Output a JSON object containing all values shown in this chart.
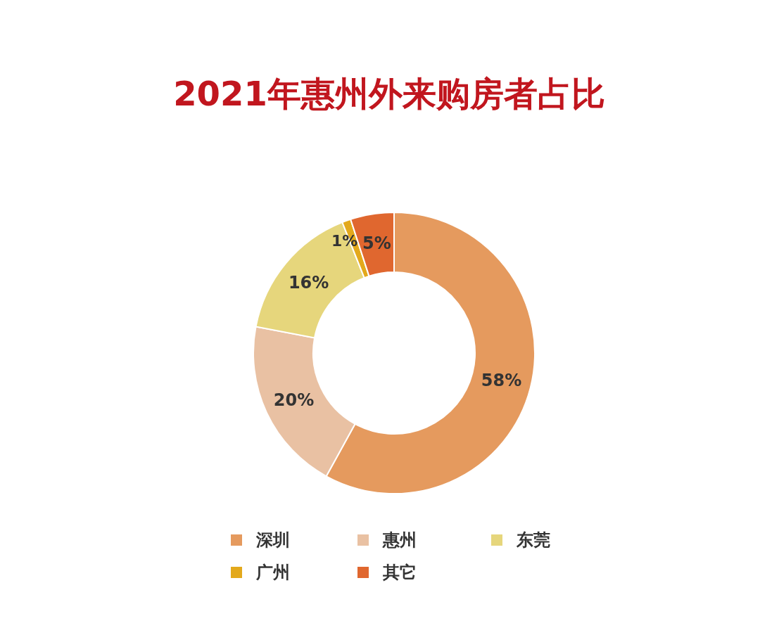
{
  "chart_data": {
    "type": "donut",
    "title": "2021年惠州外来购房者占比",
    "categories": [
      "深圳",
      "惠州",
      "东莞",
      "广州",
      "其它"
    ],
    "values": [
      58,
      20,
      16,
      1,
      5
    ],
    "colors": [
      "#e59a5e",
      "#e9c1a3",
      "#e6d67c",
      "#e3a91c",
      "#e0672f"
    ],
    "value_labels": [
      "58%",
      "20%",
      "16%",
      "1%",
      "5%"
    ],
    "legend": "bottom"
  }
}
